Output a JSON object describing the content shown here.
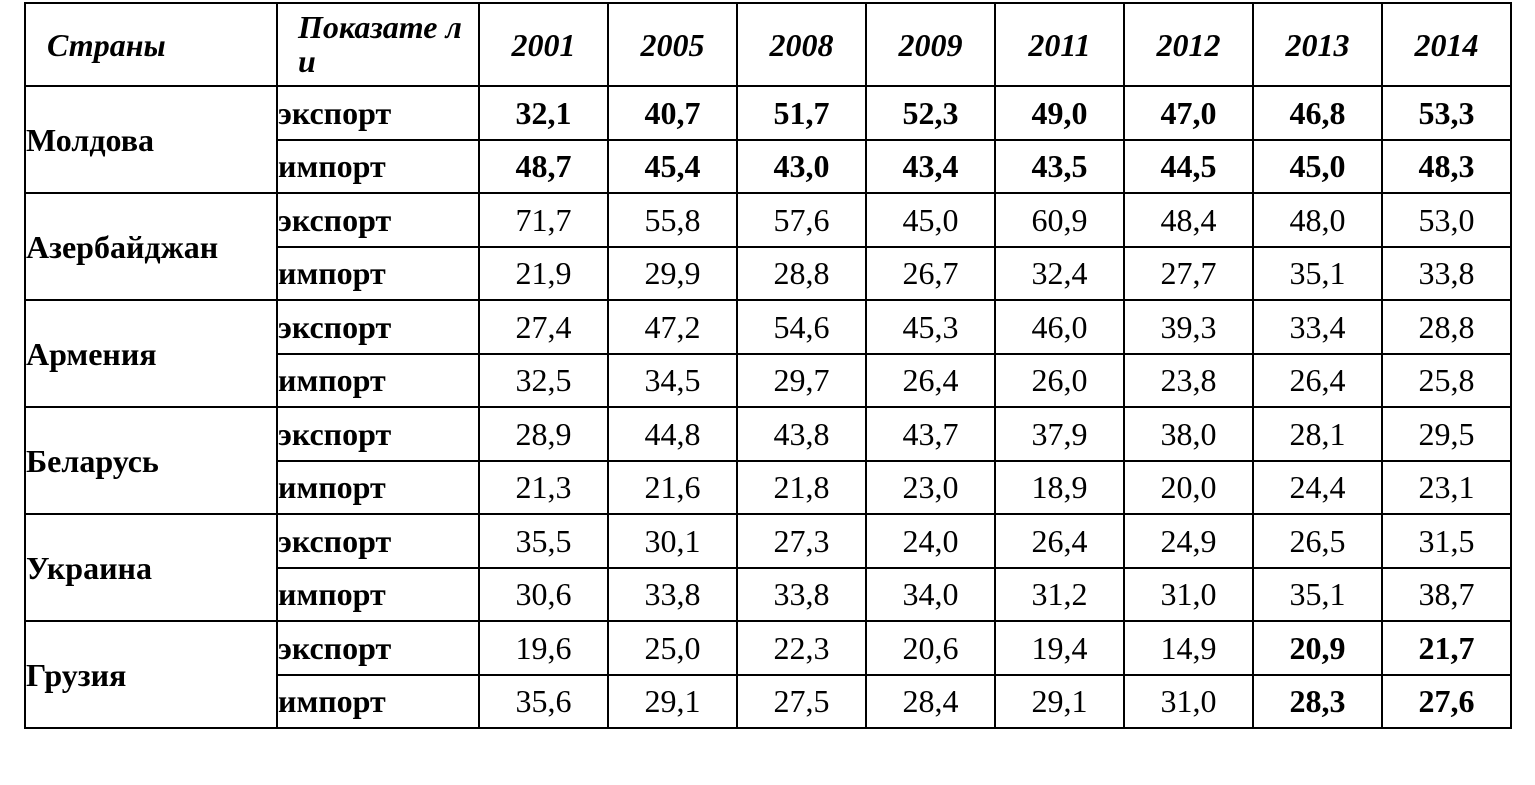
{
  "table": {
    "header": {
      "country": "Страны",
      "indicator": "Показате ли",
      "years": [
        "2001",
        "2005",
        "2008",
        "2009",
        "2011",
        "2012",
        "2013",
        "2014"
      ]
    },
    "rows": [
      {
        "country": "Молдова",
        "export": {
          "label": "экспорт",
          "values": [
            "32,1",
            "40,7",
            "51,7",
            "52,3",
            "49,0",
            "47,0",
            "46,8",
            "53,3"
          ]
        },
        "import": {
          "label": "импорт",
          "values": [
            "48,7",
            "45,4",
            "43,0",
            "43,4",
            "43,5",
            "44,5",
            "45,0",
            "48,3"
          ]
        }
      },
      {
        "country": "Азербайджан",
        "export": {
          "label": "экспорт",
          "values": [
            "71,7",
            "55,8",
            "57,6",
            "45,0",
            "60,9",
            "48,4",
            "48,0",
            "53,0"
          ]
        },
        "import": {
          "label": "импорт",
          "values": [
            "21,9",
            "29,9",
            "28,8",
            "26,7",
            "32,4",
            "27,7",
            "35,1",
            "33,8"
          ]
        }
      },
      {
        "country": "Армения",
        "export": {
          "label": "экспорт",
          "values": [
            "27,4",
            "47,2",
            "54,6",
            "45,3",
            "46,0",
            "39,3",
            "33,4",
            "28,8"
          ]
        },
        "import": {
          "label": "импорт",
          "values": [
            "32,5",
            "34,5",
            "29,7",
            "26,4",
            "26,0",
            "23,8",
            "26,4",
            "25,8"
          ]
        }
      },
      {
        "country": "Беларусь",
        "export": {
          "label": "экспорт",
          "values": [
            "28,9",
            "44,8",
            "43,8",
            "43,7",
            "37,9",
            "38,0",
            "28,1",
            "29,5"
          ]
        },
        "import": {
          "label": "импорт",
          "values": [
            "21,3",
            "21,6",
            "21,8",
            "23,0",
            "18,9",
            "20,0",
            "24,4",
            "23,1"
          ]
        }
      },
      {
        "country": "Украина",
        "export": {
          "label": "экспорт",
          "values": [
            "35,5",
            "30,1",
            "27,3",
            "24,0",
            "26,4",
            "24,9",
            "26,5",
            "31,5"
          ]
        },
        "import": {
          "label": "импорт",
          "values": [
            "30,6",
            "33,8",
            "33,8",
            "34,0",
            "31,2",
            "31,0",
            "35,1",
            "38,7"
          ]
        }
      },
      {
        "country": "Грузия",
        "export": {
          "label": "экспорт",
          "values": [
            "19,6",
            "25,0",
            "22,3",
            "20,6",
            "19,4",
            "14,9",
            "20,9",
            "21,7"
          ]
        },
        "import": {
          "label": "импорт",
          "values": [
            "35,6",
            "29,1",
            "27,5",
            "28,4",
            "29,1",
            "31,0",
            "28,3",
            "27,6"
          ]
        }
      }
    ]
  }
}
